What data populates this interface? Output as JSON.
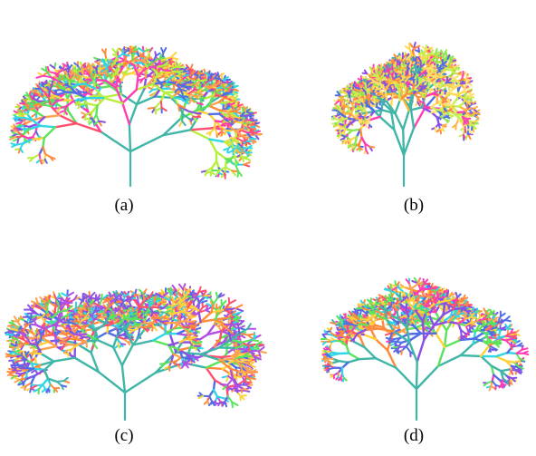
{
  "figure": {
    "panels": [
      {
        "label": "(a)",
        "trunk_color": "#3fb6a8",
        "palette": [
          "#ff8a3c",
          "#ffd23c",
          "#b6f03c",
          "#5be35b",
          "#4f6fe6",
          "#8a4fe6",
          "#2fd6e6",
          "#ff3cb4",
          "#ff4f6f",
          "#ffa24f"
        ]
      },
      {
        "label": "(b)",
        "trunk_color": "#3fb6a8",
        "palette": [
          "#ffb43c",
          "#ffd84f",
          "#ff8a3c",
          "#c6f04f",
          "#8fe64f",
          "#4f6fe6",
          "#8a4fe6",
          "#ff3cb4",
          "#ffe06f"
        ]
      },
      {
        "label": "(c)",
        "trunk_color": "#3fb6a8",
        "palette": [
          "#4f6fe6",
          "#ff8a3c",
          "#ffd23c",
          "#8a4fe6",
          "#b04fe6",
          "#5be35b",
          "#2fd6e6",
          "#ff4f6f",
          "#ffa24f"
        ]
      },
      {
        "label": "(d)",
        "trunk_color": "#3fb6a8",
        "palette": [
          "#ff8a3c",
          "#ff3cb4",
          "#4f6fe6",
          "#5be35b",
          "#ffd23c",
          "#8a4fe6",
          "#ffa24f",
          "#2fd6e6",
          "#ff4f6f"
        ]
      }
    ]
  }
}
